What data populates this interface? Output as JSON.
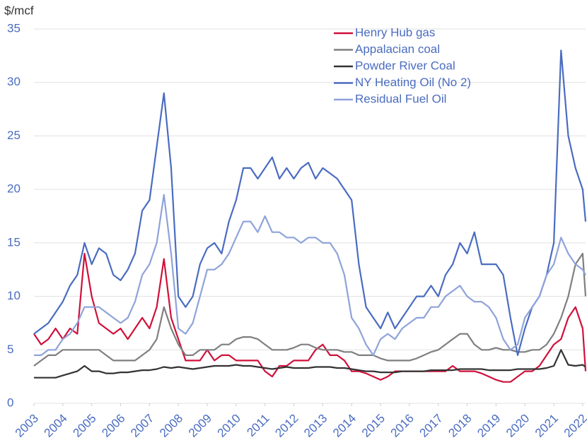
{
  "chart_data": {
    "type": "line",
    "ylabel": "$/mcf",
    "x": [
      2003,
      2003.25,
      2003.5,
      2003.75,
      2004,
      2004.25,
      2004.5,
      2004.75,
      2005,
      2005.25,
      2005.5,
      2005.75,
      2006,
      2006.25,
      2006.5,
      2006.75,
      2007,
      2007.25,
      2007.5,
      2007.75,
      2008,
      2008.25,
      2008.5,
      2008.75,
      2009,
      2009.25,
      2009.5,
      2009.75,
      2010,
      2010.25,
      2010.5,
      2010.75,
      2011,
      2011.25,
      2011.5,
      2011.75,
      2012,
      2012.25,
      2012.5,
      2012.75,
      2013,
      2013.25,
      2013.5,
      2013.75,
      2014,
      2014.25,
      2014.5,
      2014.75,
      2015,
      2015.25,
      2015.5,
      2015.75,
      2016,
      2016.25,
      2016.5,
      2016.75,
      2017,
      2017.25,
      2017.5,
      2017.75,
      2018,
      2018.25,
      2018.5,
      2018.75,
      2019,
      2019.25,
      2019.5,
      2019.75,
      2020,
      2020.25,
      2020.5,
      2020.75,
      2021,
      2021.25,
      2021.5,
      2021.75,
      2022,
      2022.1
    ],
    "series": [
      {
        "name": "Henry Hub gas",
        "color": "#d0103a",
        "values": [
          6.5,
          5.5,
          6,
          7,
          6,
          7,
          6.5,
          14,
          10,
          7.5,
          7,
          6.5,
          7,
          6,
          7,
          8,
          7,
          9,
          13.5,
          8,
          6,
          4,
          4,
          4,
          5,
          4,
          4.5,
          4.5,
          4,
          4,
          4,
          4,
          3,
          2.5,
          3.5,
          3.5,
          4,
          4,
          4,
          5,
          5.5,
          4.5,
          4.5,
          4,
          3,
          3,
          2.8,
          2.5,
          2.2,
          2.5,
          3,
          3,
          3,
          3,
          3,
          3,
          3,
          3,
          3.5,
          3,
          3,
          3,
          2.8,
          2.5,
          2.2,
          2,
          2,
          2.5,
          3,
          3,
          3.5,
          4.5,
          5.5,
          6,
          8,
          9,
          7,
          3
        ]
      },
      {
        "name": "Appalacian coal",
        "color": "#7f7f7f",
        "values": [
          3.5,
          4,
          4.5,
          4.5,
          5,
          5,
          5,
          5,
          5,
          5,
          4.5,
          4,
          4,
          4,
          4,
          4.5,
          5,
          6,
          9,
          7,
          5.5,
          4.5,
          4.5,
          5,
          5,
          5,
          5.5,
          5.5,
          6,
          6.2,
          6.2,
          6,
          5.5,
          5,
          5,
          5,
          5.2,
          5.5,
          5.5,
          5.2,
          5,
          5,
          5,
          4.8,
          4.8,
          4.5,
          4.5,
          4.5,
          4.2,
          4,
          4,
          4,
          4,
          4.2,
          4.5,
          4.8,
          5,
          5.5,
          6,
          6.5,
          6.5,
          5.5,
          5,
          5,
          5.2,
          5,
          5,
          4.8,
          4.8,
          5,
          5,
          5.5,
          6.5,
          8,
          10,
          13,
          14,
          10
        ]
      },
      {
        "name": "Powder River Coal",
        "color": "#333333",
        "values": [
          2.4,
          2.4,
          2.4,
          2.4,
          2.6,
          2.8,
          3,
          3.5,
          3,
          3,
          2.8,
          2.8,
          2.9,
          2.9,
          3,
          3.1,
          3.1,
          3.2,
          3.4,
          3.3,
          3.4,
          3.3,
          3.2,
          3.3,
          3.4,
          3.5,
          3.5,
          3.5,
          3.6,
          3.5,
          3.5,
          3.4,
          3.3,
          3.2,
          3.3,
          3.4,
          3.3,
          3.3,
          3.3,
          3.4,
          3.4,
          3.4,
          3.3,
          3.3,
          3.2,
          3.1,
          3,
          3,
          2.9,
          2.9,
          2.9,
          3,
          3,
          3,
          3,
          3.1,
          3.1,
          3.1,
          3.1,
          3.2,
          3.2,
          3.2,
          3.2,
          3.1,
          3.1,
          3.1,
          3.1,
          3.2,
          3.2,
          3.2,
          3.2,
          3.3,
          3.5,
          5,
          3.6,
          3.5,
          3.6,
          3.4
        ]
      },
      {
        "name": "NY Heating Oil (No 2)",
        "color": "#4a6cc0",
        "values": [
          6.5,
          7,
          7.5,
          8.5,
          9.5,
          11,
          12,
          15,
          13,
          14.5,
          14,
          12,
          11.5,
          12.5,
          14,
          18,
          19,
          24,
          29,
          22,
          10,
          9,
          10,
          13,
          14.5,
          15,
          14,
          17,
          19,
          22,
          22,
          21,
          22,
          23,
          21,
          22,
          21,
          22,
          22.5,
          21,
          22,
          21.5,
          21,
          20,
          19,
          13,
          9,
          8,
          7,
          8.5,
          7,
          8,
          9,
          10,
          10,
          11,
          10,
          12,
          13,
          15,
          14,
          16,
          13,
          13,
          13,
          12,
          8,
          4.5,
          7,
          9,
          10,
          12,
          15,
          33,
          25,
          22,
          20,
          17
        ]
      },
      {
        "name": "Residual Fuel Oil",
        "color": "#8fa3da",
        "values": [
          4.5,
          4.5,
          5,
          5,
          6,
          6.5,
          7.5,
          9,
          9,
          9,
          8.5,
          8,
          7.5,
          8,
          9.5,
          12,
          13,
          15,
          19.5,
          14,
          7,
          6.5,
          7.5,
          10,
          12.5,
          12.5,
          13,
          14,
          15.5,
          17,
          17,
          16,
          17.5,
          16,
          16,
          15.5,
          15.5,
          15,
          15.5,
          15.5,
          15,
          15,
          14,
          12,
          8,
          7,
          5.5,
          4.5,
          6,
          6.5,
          6,
          7,
          7.5,
          8,
          8,
          9,
          9,
          10,
          10.5,
          11,
          10,
          9.5,
          9.5,
          9,
          8,
          6,
          5,
          5.5,
          8,
          9,
          10,
          12,
          13,
          15.5,
          14,
          13,
          12.5,
          12
        ]
      }
    ],
    "xlim": [
      2003,
      2022.1
    ],
    "xticks": [
      2003,
      2004,
      2005,
      2006,
      2007,
      2008,
      2009,
      2010,
      2011,
      2012,
      2013,
      2014,
      2015,
      2016,
      2017,
      2018,
      2019,
      2020,
      2021,
      2022
    ],
    "ylim": [
      0,
      35
    ],
    "yticks": [
      0,
      5,
      10,
      15,
      20,
      25,
      30,
      35
    ],
    "grid": true,
    "legend": "top-right"
  }
}
